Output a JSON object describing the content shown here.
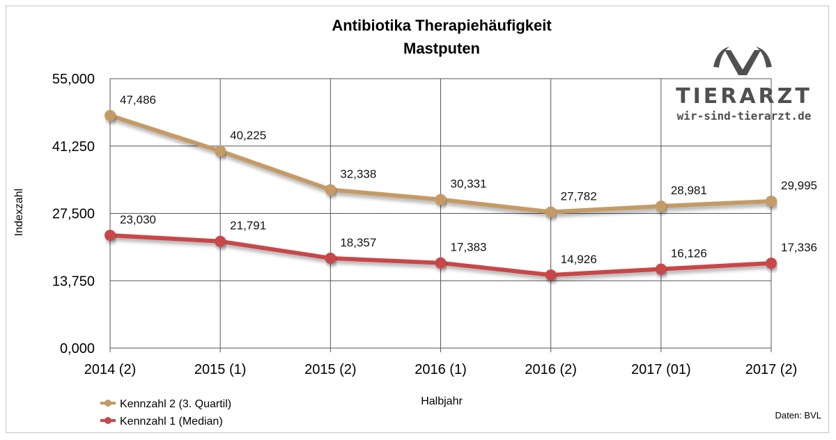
{
  "title_line1": "Antibiotika Therapiehäufigkeit",
  "title_line2": "Mastputen",
  "logo": {
    "word": "TIERARZT",
    "url": "wir-sind-tierarzt.de"
  },
  "source": "Daten: BVL",
  "colors": {
    "series_q3": "#c49a66",
    "series_median": "#c8474a",
    "grid": "#555555"
  },
  "chart_data": {
    "type": "line",
    "title": "Antibiotika Therapiehäufigkeit Mastputen",
    "xlabel": "Halbjahr",
    "ylabel": "Indexzahl",
    "ylim": [
      0,
      55000
    ],
    "yticks": [
      0,
      13750,
      27500,
      41250,
      55000
    ],
    "ytick_labels": [
      "0,000",
      "13,750",
      "27,500",
      "41,250",
      "55,000"
    ],
    "grid": true,
    "legend_position": "bottom-left",
    "categories": [
      "2014 (2)",
      "2015 (1)",
      "2015 (2)",
      "2016 (1)",
      "2016 (2)",
      "2017 (01)",
      "2017 (2)"
    ],
    "series": [
      {
        "name": "Kennzahl 2 (3. Quartil)",
        "values": [
          47486,
          40225,
          32338,
          30331,
          27782,
          28981,
          29995
        ],
        "labels": [
          "47,486",
          "40,225",
          "32,338",
          "30,331",
          "27,782",
          "28,981",
          "29,995"
        ]
      },
      {
        "name": "Kennzahl 1 (Median)",
        "values": [
          23030,
          21791,
          18357,
          17383,
          14926,
          16126,
          17336
        ],
        "labels": [
          "23,030",
          "21,791",
          "18,357",
          "17,383",
          "14,926",
          "16,126",
          "17,336"
        ]
      }
    ]
  }
}
